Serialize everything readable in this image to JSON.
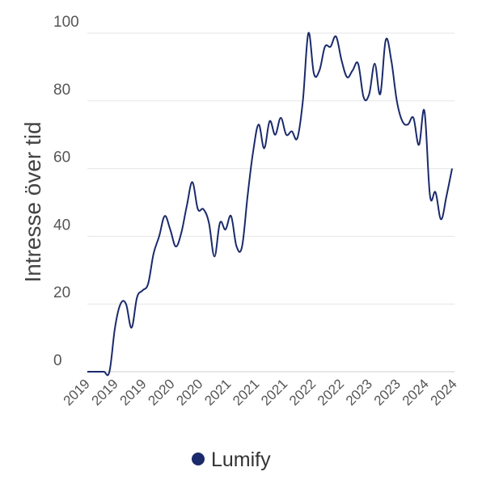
{
  "chart_data": {
    "type": "line",
    "ylabel": "Intresse över tid",
    "ylim": [
      0,
      100
    ],
    "yticks": [
      0,
      20,
      40,
      60,
      80,
      100
    ],
    "xtick_labels": [
      "2019",
      "2019",
      "2019",
      "2020",
      "2020",
      "2021",
      "2021",
      "2021",
      "2022",
      "2022",
      "2023",
      "2023",
      "2024",
      "2024"
    ],
    "grid": true,
    "legend_position": "bottom",
    "series": [
      {
        "name": "Lumify",
        "color": "#1b2a6b",
        "values": [
          0,
          0,
          0,
          0,
          0,
          13,
          20,
          20,
          13,
          22,
          24,
          26,
          35,
          40,
          46,
          42,
          37,
          41,
          49,
          56,
          48,
          48,
          44,
          34,
          44,
          42,
          46,
          37,
          37,
          52,
          65,
          73,
          66,
          74,
          70,
          75,
          70,
          71,
          69,
          80,
          100,
          88,
          89,
          96,
          96,
          99,
          92,
          87,
          89,
          91,
          81,
          82,
          91,
          82,
          98,
          92,
          80,
          74,
          73,
          75,
          67,
          77,
          52,
          53,
          45,
          52,
          60
        ]
      }
    ]
  }
}
